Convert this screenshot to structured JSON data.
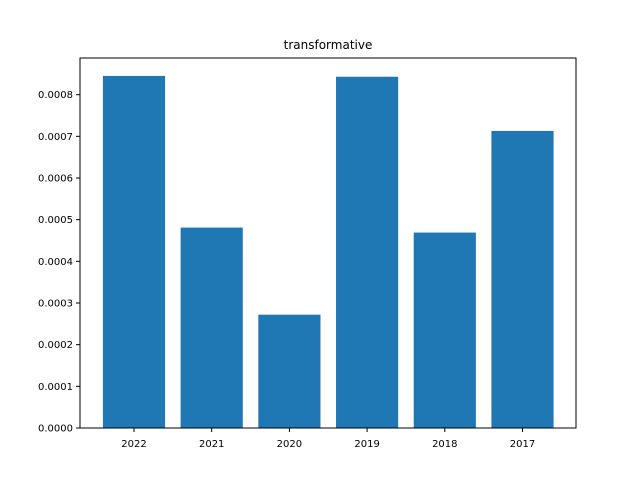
{
  "chart_data": {
    "type": "bar",
    "title": "transformative",
    "xlabel": "",
    "ylabel": "",
    "categories": [
      "2022",
      "2021",
      "2020",
      "2019",
      "2018",
      "2017"
    ],
    "values": [
      0.000845,
      0.000481,
      0.000272,
      0.000843,
      0.000469,
      0.000713
    ],
    "ylim": [
      0,
      0.000888
    ],
    "yticks": [
      0,
      0.0001,
      0.0002,
      0.0003,
      0.0004,
      0.0005,
      0.0006,
      0.0007,
      0.0008
    ],
    "ytick_labels": [
      "0.0000",
      "0.0001",
      "0.0002",
      "0.0003",
      "0.0004",
      "0.0005",
      "0.0006",
      "0.0007",
      "0.0008"
    ],
    "bar_color": "#1f77b4",
    "grid": false,
    "legend": "none"
  }
}
